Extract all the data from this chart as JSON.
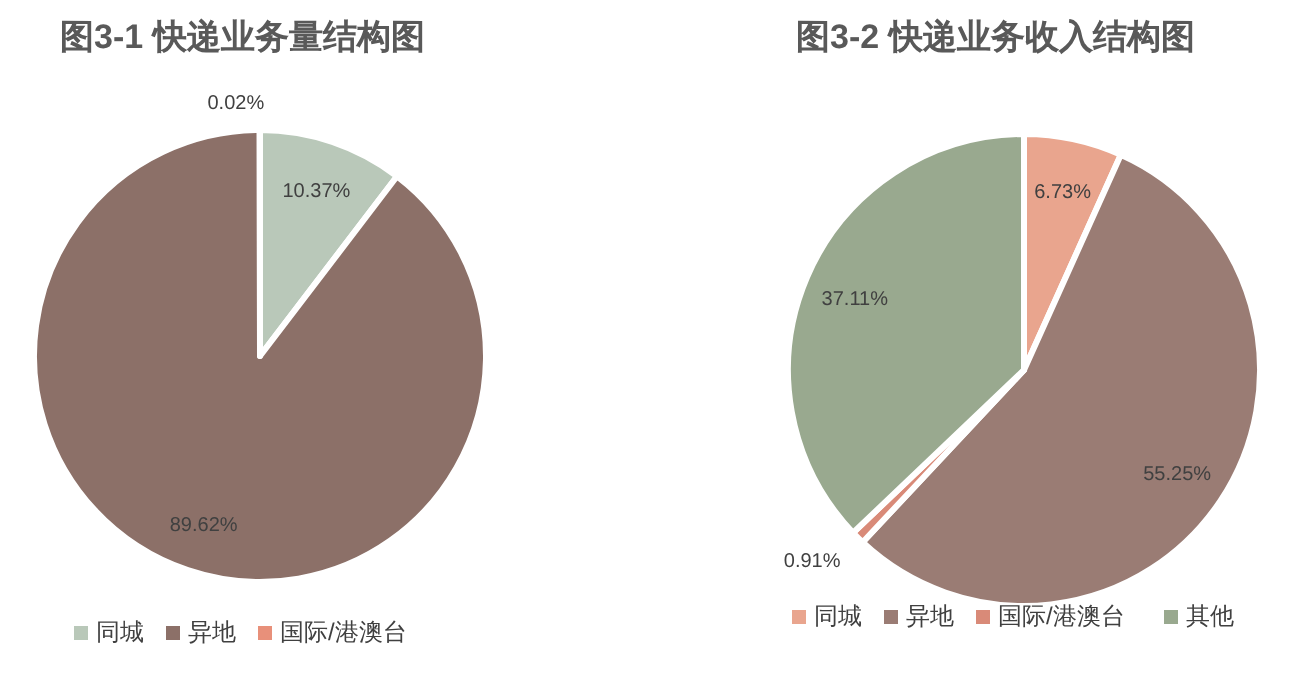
{
  "chart_data": [
    {
      "type": "pie",
      "title": "图3-1 快递业务量结构图",
      "categories": [
        "同城",
        "异地",
        "国际/港澳台"
      ],
      "values": [
        10.37,
        89.62,
        0.02
      ],
      "value_labels": [
        "10.37%",
        "89.62%",
        "0.02%"
      ],
      "colors": [
        "#b9c8b9",
        "#8c7068",
        "#e8907a"
      ],
      "legend": "bottom"
    },
    {
      "type": "pie",
      "title": "图3-2 快递业务收入结构图",
      "categories": [
        "同城",
        "异地",
        "国际/港澳台",
        "其他"
      ],
      "values": [
        6.73,
        55.25,
        0.91,
        37.11
      ],
      "value_labels": [
        "6.73%",
        "55.25%",
        "0.91%",
        "37.11%"
      ],
      "colors": [
        "#e9a58e",
        "#9a7c74",
        "#d98a78",
        "#99a98f"
      ],
      "legend": "bottom"
    }
  ]
}
